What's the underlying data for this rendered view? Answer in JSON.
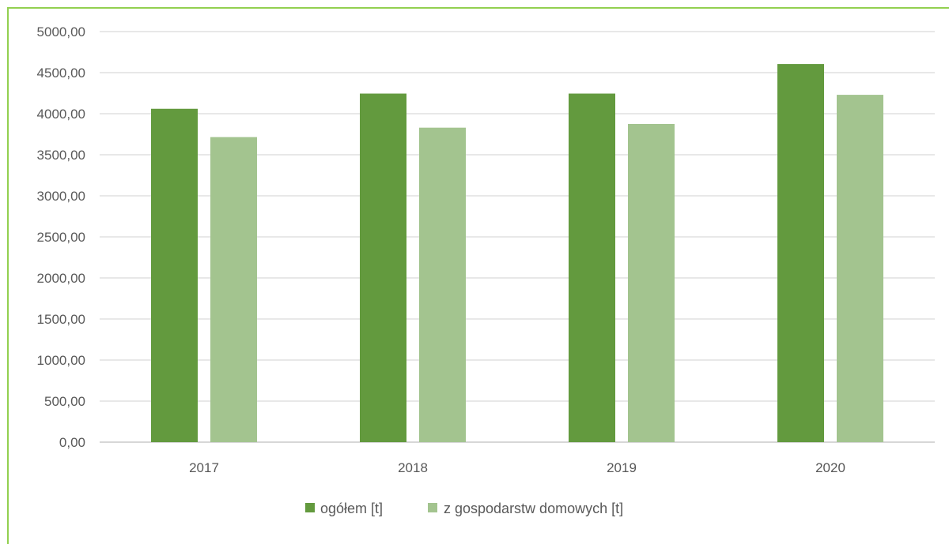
{
  "chart_data": {
    "type": "bar",
    "categories": [
      "2017",
      "2018",
      "2019",
      "2020"
    ],
    "series": [
      {
        "name": "ogółem [t]",
        "color": "#639a3e",
        "values": [
          4060,
          4245,
          4245,
          4605
        ]
      },
      {
        "name": "z gospodarstw domowych [t]",
        "color": "#a3c48f",
        "values": [
          3715,
          3830,
          3875,
          4230
        ]
      }
    ],
    "ylim": [
      0,
      5000
    ],
    "yticks": [
      "0,00",
      "500,00",
      "1000,00",
      "1500,00",
      "2000,00",
      "2500,00",
      "3000,00",
      "3500,00",
      "4000,00",
      "4500,00",
      "5000,00"
    ],
    "grid": true,
    "legend": "bottom"
  }
}
